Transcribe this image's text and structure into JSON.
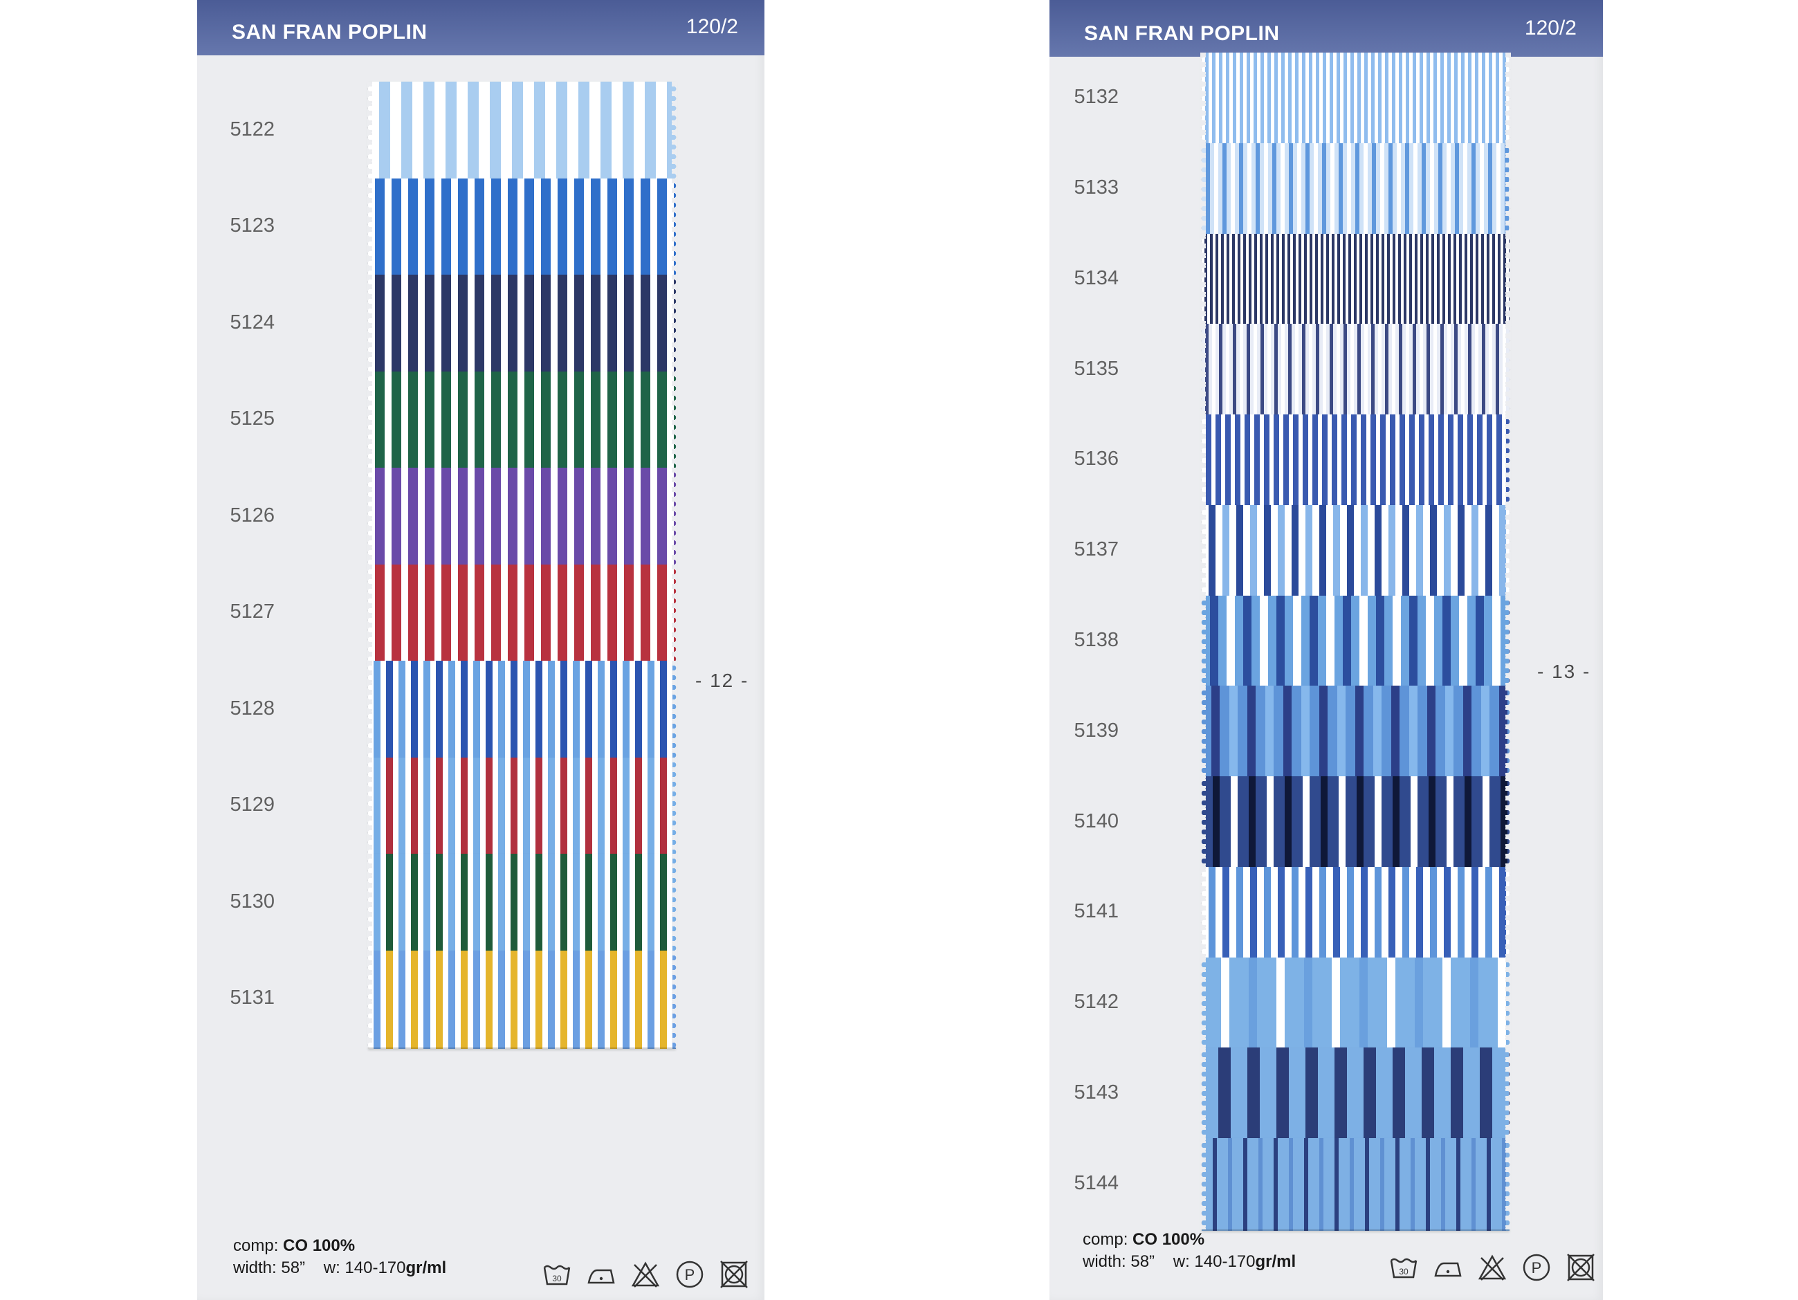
{
  "cards": [
    {
      "id": "left",
      "title": "SAN FRAN POPLIN",
      "code": "120/2",
      "page": "- 12 -",
      "comp_label": "comp:",
      "comp_value": "CO 100%",
      "width_label": "width: 58”",
      "weight_label": "w: 140-170",
      "weight_unit": "gr/ml",
      "swatches": [
        {
          "code": "5122",
          "colors": [
            "#ffffff",
            "#a9cdf0"
          ],
          "stripe": [
            16,
            16
          ]
        },
        {
          "code": "5123",
          "colors": [
            "#ffffff",
            "#2f6fca"
          ],
          "stripe": [
            10,
            14
          ]
        },
        {
          "code": "5124",
          "colors": [
            "#ffffff",
            "#2c3866"
          ],
          "stripe": [
            10,
            14
          ]
        },
        {
          "code": "5125",
          "colors": [
            "#ffffff",
            "#1f6448"
          ],
          "stripe": [
            10,
            14
          ]
        },
        {
          "code": "5126",
          "colors": [
            "#ffffff",
            "#6a4aa8"
          ],
          "stripe": [
            10,
            14
          ]
        },
        {
          "code": "5127",
          "colors": [
            "#ffffff",
            "#b8323f"
          ],
          "stripe": [
            10,
            14
          ]
        },
        {
          "code": "5128",
          "colors": [
            "#ffffff",
            "#6aa3e2",
            "#2b54b0"
          ],
          "stripe": [
            8,
            10
          ]
        },
        {
          "code": "5129",
          "colors": [
            "#ffffff",
            "#76aee6",
            "#b0303e"
          ],
          "stripe": [
            8,
            10
          ]
        },
        {
          "code": "5130",
          "colors": [
            "#ffffff",
            "#76aee6",
            "#1f5b3a"
          ],
          "stripe": [
            8,
            10
          ]
        },
        {
          "code": "5131",
          "colors": [
            "#ffffff",
            "#6b9fe2",
            "#e5b52c"
          ],
          "stripe": [
            8,
            10
          ]
        }
      ]
    },
    {
      "id": "right",
      "title": "SAN FRAN POPLIN",
      "code": "120/2",
      "page": "- 13 -",
      "comp_label": "comp:",
      "comp_value": "CO 100%",
      "width_label": "width: 58”",
      "weight_label": "w: 140-170",
      "weight_unit": "gr/ml",
      "swatches": [
        {
          "code": "5132",
          "colors": [
            "#ffffff",
            "#8fbcee"
          ],
          "stripe": [
            5,
            5
          ]
        },
        {
          "code": "5133",
          "colors": [
            "#cfe2f7",
            "#5f98dd",
            "#ffffff"
          ],
          "stripe": [
            6,
            6
          ]
        },
        {
          "code": "5134",
          "colors": [
            "#ffffff",
            "#2c3866"
          ],
          "stripe": [
            4,
            4
          ]
        },
        {
          "code": "5135",
          "colors": [
            "#e8ecf6",
            "#3c4a84",
            "#ffffff"
          ],
          "stripe": [
            5,
            5
          ]
        },
        {
          "code": "5136",
          "colors": [
            "#ffffff",
            "#3a5ab0"
          ],
          "stripe": [
            6,
            8
          ]
        },
        {
          "code": "5137",
          "colors": [
            "#ffffff",
            "#2b4a9a",
            "#88b6ea"
          ],
          "stripe": [
            10,
            10
          ]
        },
        {
          "code": "5138",
          "colors": [
            "#6ba4e0",
            "#2c4e9e",
            "#ffffff"
          ],
          "stripe": [
            12,
            12
          ]
        },
        {
          "code": "5139",
          "colors": [
            "#5e94d8",
            "#2c3f88",
            "#86b8ec"
          ],
          "stripe": [
            14,
            12
          ]
        },
        {
          "code": "5140",
          "colors": [
            "#304a8e",
            "#0f1838",
            "#ffffff"
          ],
          "stripe": [
            16,
            10
          ]
        },
        {
          "code": "5141",
          "colors": [
            "#ffffff",
            "#5e95da",
            "#3860b8"
          ],
          "stripe": [
            10,
            10
          ]
        },
        {
          "code": "5142",
          "colors": [
            "#7eb2e6",
            "#ffffff",
            "#6aa0de"
          ],
          "stripe": [
            28,
            12
          ]
        },
        {
          "code": "5143",
          "colors": [
            "#7db0e5",
            "#2b3d78"
          ],
          "stripe": [
            24,
            18
          ]
        },
        {
          "code": "5144",
          "colors": [
            "#7eb0e4",
            "#2b4080",
            "#5f90d2"
          ],
          "stripe": [
            16,
            6
          ]
        }
      ]
    }
  ],
  "care_icons": [
    "wash-30-icon",
    "iron-low-icon",
    "no-bleach-icon",
    "dry-clean-p-icon",
    "no-tumble-dry-icon"
  ]
}
